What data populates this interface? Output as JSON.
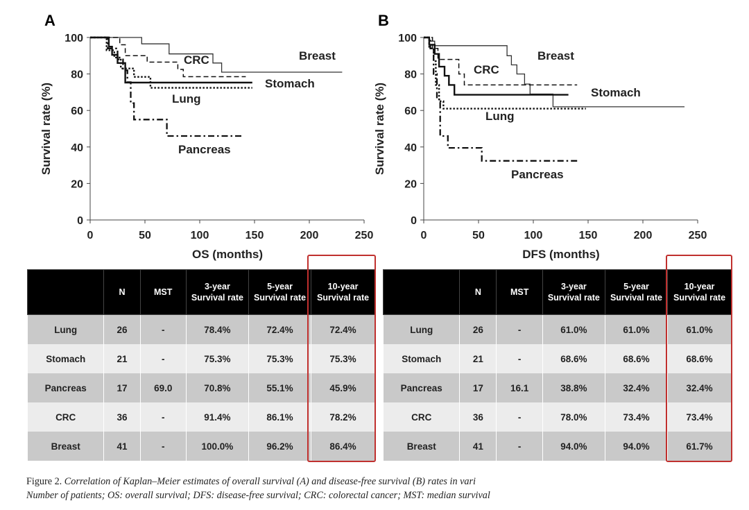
{
  "charts": [
    {
      "panel_label": "A",
      "chart_data": {
        "type": "line",
        "step": true,
        "xlabel": "OS (months)",
        "ylabel": "Survival rate (%)",
        "xlim": [
          0,
          250
        ],
        "ylim": [
          0,
          100
        ],
        "xticks": [
          "0",
          "50",
          "100",
          "150",
          "200",
          "250"
        ],
        "yticks": [
          "0",
          "20",
          "40",
          "60",
          "80",
          "100"
        ],
        "series": [
          {
            "name": "Breast",
            "style": "solid-thin",
            "points": [
              [
                0,
                100
              ],
              [
                47,
                100
              ],
              [
                47,
                96.5
              ],
              [
                72,
                96.5
              ],
              [
                72,
                91
              ],
              [
                112,
                91
              ],
              [
                112,
                86
              ],
              [
                120,
                86
              ],
              [
                120,
                81
              ],
              [
                230,
                81
              ],
              [
                230,
                81
              ]
            ]
          },
          {
            "name": "CRC",
            "style": "dashed",
            "points": [
              [
                0,
                100
              ],
              [
                27,
                100
              ],
              [
                27,
                96
              ],
              [
                32,
                96
              ],
              [
                32,
                90
              ],
              [
                52,
                90
              ],
              [
                52,
                86.5
              ],
              [
                80,
                86.5
              ],
              [
                80,
                82.5
              ],
              [
                85,
                82.5
              ],
              [
                85,
                78.5
              ],
              [
                142,
                78.5
              ]
            ]
          },
          {
            "name": "Stomach",
            "style": "solid-thick",
            "points": [
              [
                0,
                100
              ],
              [
                17,
                100
              ],
              [
                17,
                95
              ],
              [
                20,
                95
              ],
              [
                20,
                90.5
              ],
              [
                25,
                90.5
              ],
              [
                25,
                86
              ],
              [
                32,
                86
              ],
              [
                32,
                75.3
              ],
              [
                148,
                75.3
              ]
            ]
          },
          {
            "name": "Lung",
            "style": "dotted",
            "points": [
              [
                0,
                100
              ],
              [
                15,
                100
              ],
              [
                15,
                93
              ],
              [
                22,
                93
              ],
              [
                22,
                89
              ],
              [
                28,
                89
              ],
              [
                28,
                83
              ],
              [
                40,
                83
              ],
              [
                40,
                78.4
              ],
              [
                55,
                78.4
              ],
              [
                55,
                72.4
              ],
              [
                148,
                72.4
              ]
            ]
          },
          {
            "name": "Pancreas",
            "style": "dash-dot",
            "points": [
              [
                0,
                100
              ],
              [
                16,
                100
              ],
              [
                16,
                94
              ],
              [
                25,
                94
              ],
              [
                25,
                88
              ],
              [
                30,
                88
              ],
              [
                30,
                82
              ],
              [
                34,
                82
              ],
              [
                34,
                75.5
              ],
              [
                37,
                75.5
              ],
              [
                37,
                64
              ],
              [
                40,
                64
              ],
              [
                40,
                55
              ],
              [
                70,
                55
              ],
              [
                70,
                46
              ],
              [
                138,
                46
              ]
            ]
          }
        ],
        "annotations": [
          "Breast",
          "CRC",
          "Stomach",
          "Lung",
          "Pancreas"
        ]
      }
    },
    {
      "panel_label": "B",
      "chart_data": {
        "type": "line",
        "step": true,
        "xlabel": "DFS (months)",
        "ylabel": "Survival rate (%)",
        "xlim": [
          0,
          250
        ],
        "ylim": [
          0,
          100
        ],
        "xticks": [
          "0",
          "50",
          "100",
          "150",
          "200",
          "250"
        ],
        "yticks": [
          "0",
          "20",
          "40",
          "60",
          "80",
          "100"
        ],
        "series": [
          {
            "name": "Breast",
            "style": "solid-thin",
            "points": [
              [
                0,
                100
              ],
              [
                5,
                100
              ],
              [
                5,
                98
              ],
              [
                10,
                98
              ],
              [
                10,
                95.5
              ],
              [
                76,
                95.5
              ],
              [
                76,
                90
              ],
              [
                80,
                90
              ],
              [
                80,
                85
              ],
              [
                85,
                85
              ],
              [
                85,
                80
              ],
              [
                92,
                80
              ],
              [
                92,
                74.5
              ],
              [
                97,
                74.5
              ],
              [
                97,
                69
              ],
              [
                118,
                69
              ],
              [
                118,
                62
              ],
              [
                238,
                62
              ]
            ]
          },
          {
            "name": "CRC",
            "style": "dashed",
            "points": [
              [
                0,
                100
              ],
              [
                8,
                100
              ],
              [
                8,
                94
              ],
              [
                13,
                94
              ],
              [
                13,
                88
              ],
              [
                32,
                88
              ],
              [
                32,
                80
              ],
              [
                37,
                80
              ],
              [
                37,
                74
              ],
              [
                140,
                74
              ]
            ]
          },
          {
            "name": "Stomach",
            "style": "solid-thick",
            "points": [
              [
                0,
                100
              ],
              [
                5,
                100
              ],
              [
                5,
                96
              ],
              [
                10,
                96
              ],
              [
                10,
                91
              ],
              [
                14,
                91
              ],
              [
                14,
                84
              ],
              [
                19,
                84
              ],
              [
                19,
                79
              ],
              [
                23,
                79
              ],
              [
                23,
                74
              ],
              [
                28,
                74
              ],
              [
                28,
                68.6
              ],
              [
                132,
                68.6
              ]
            ]
          },
          {
            "name": "Lung",
            "style": "dotted",
            "points": [
              [
                0,
                100
              ],
              [
                5,
                100
              ],
              [
                5,
                94
              ],
              [
                9,
                94
              ],
              [
                9,
                87
              ],
              [
                11,
                87
              ],
              [
                11,
                74
              ],
              [
                14,
                74
              ],
              [
                14,
                65
              ],
              [
                18,
                65
              ],
              [
                18,
                61
              ],
              [
                148,
                61
              ]
            ]
          },
          {
            "name": "Pancreas",
            "style": "dash-dot",
            "points": [
              [
                0,
                100
              ],
              [
                6,
                100
              ],
              [
                6,
                94
              ],
              [
                9,
                94
              ],
              [
                9,
                80
              ],
              [
                12,
                80
              ],
              [
                12,
                66
              ],
              [
                15,
                66
              ],
              [
                15,
                46
              ],
              [
                22,
                46
              ],
              [
                22,
                39.5
              ],
              [
                53,
                39.5
              ],
              [
                53,
                32.4
              ],
              [
                140,
                32.4
              ]
            ]
          }
        ],
        "annotations": [
          "Breast",
          "CRC",
          "Stomach",
          "Lung",
          "Pancreas"
        ]
      }
    }
  ],
  "tables": {
    "headers": [
      "",
      "N",
      "MST",
      "3-year Survival rate",
      "5-year Survival rate",
      "10-year Survival rate"
    ],
    "a": [
      [
        "Lung",
        "26",
        "-",
        "78.4%",
        "72.4%",
        "72.4%"
      ],
      [
        "Stomach",
        "21",
        "-",
        "75.3%",
        "75.3%",
        "75.3%"
      ],
      [
        "Pancreas",
        "17",
        "69.0",
        "70.8%",
        "55.1%",
        "45.9%"
      ],
      [
        "CRC",
        "36",
        "-",
        "91.4%",
        "86.1%",
        "78.2%"
      ],
      [
        "Breast",
        "41",
        "-",
        "100.0%",
        "96.2%",
        "86.4%"
      ]
    ],
    "b": [
      [
        "Lung",
        "26",
        "-",
        "61.0%",
        "61.0%",
        "61.0%"
      ],
      [
        "Stomach",
        "21",
        "-",
        "68.6%",
        "68.6%",
        "68.6%"
      ],
      [
        "Pancreas",
        "17",
        "16.1",
        "38.8%",
        "32.4%",
        "32.4%"
      ],
      [
        "CRC",
        "36",
        "-",
        "78.0%",
        "73.4%",
        "73.4%"
      ],
      [
        "Breast",
        "41",
        "-",
        "94.0%",
        "94.0%",
        "61.7%"
      ]
    ]
  },
  "highlight_color": "#c0302e",
  "caption": {
    "lead": "Figure 2.",
    "body": "Correlation of Kaplan–Meier estimates of overall survival (A) and disease-free survival (B) rates in vari",
    "line2": "Number of patients; OS: overall survival; DFS: disease-free survival; CRC: colorectal cancer; MST: median survival"
  }
}
